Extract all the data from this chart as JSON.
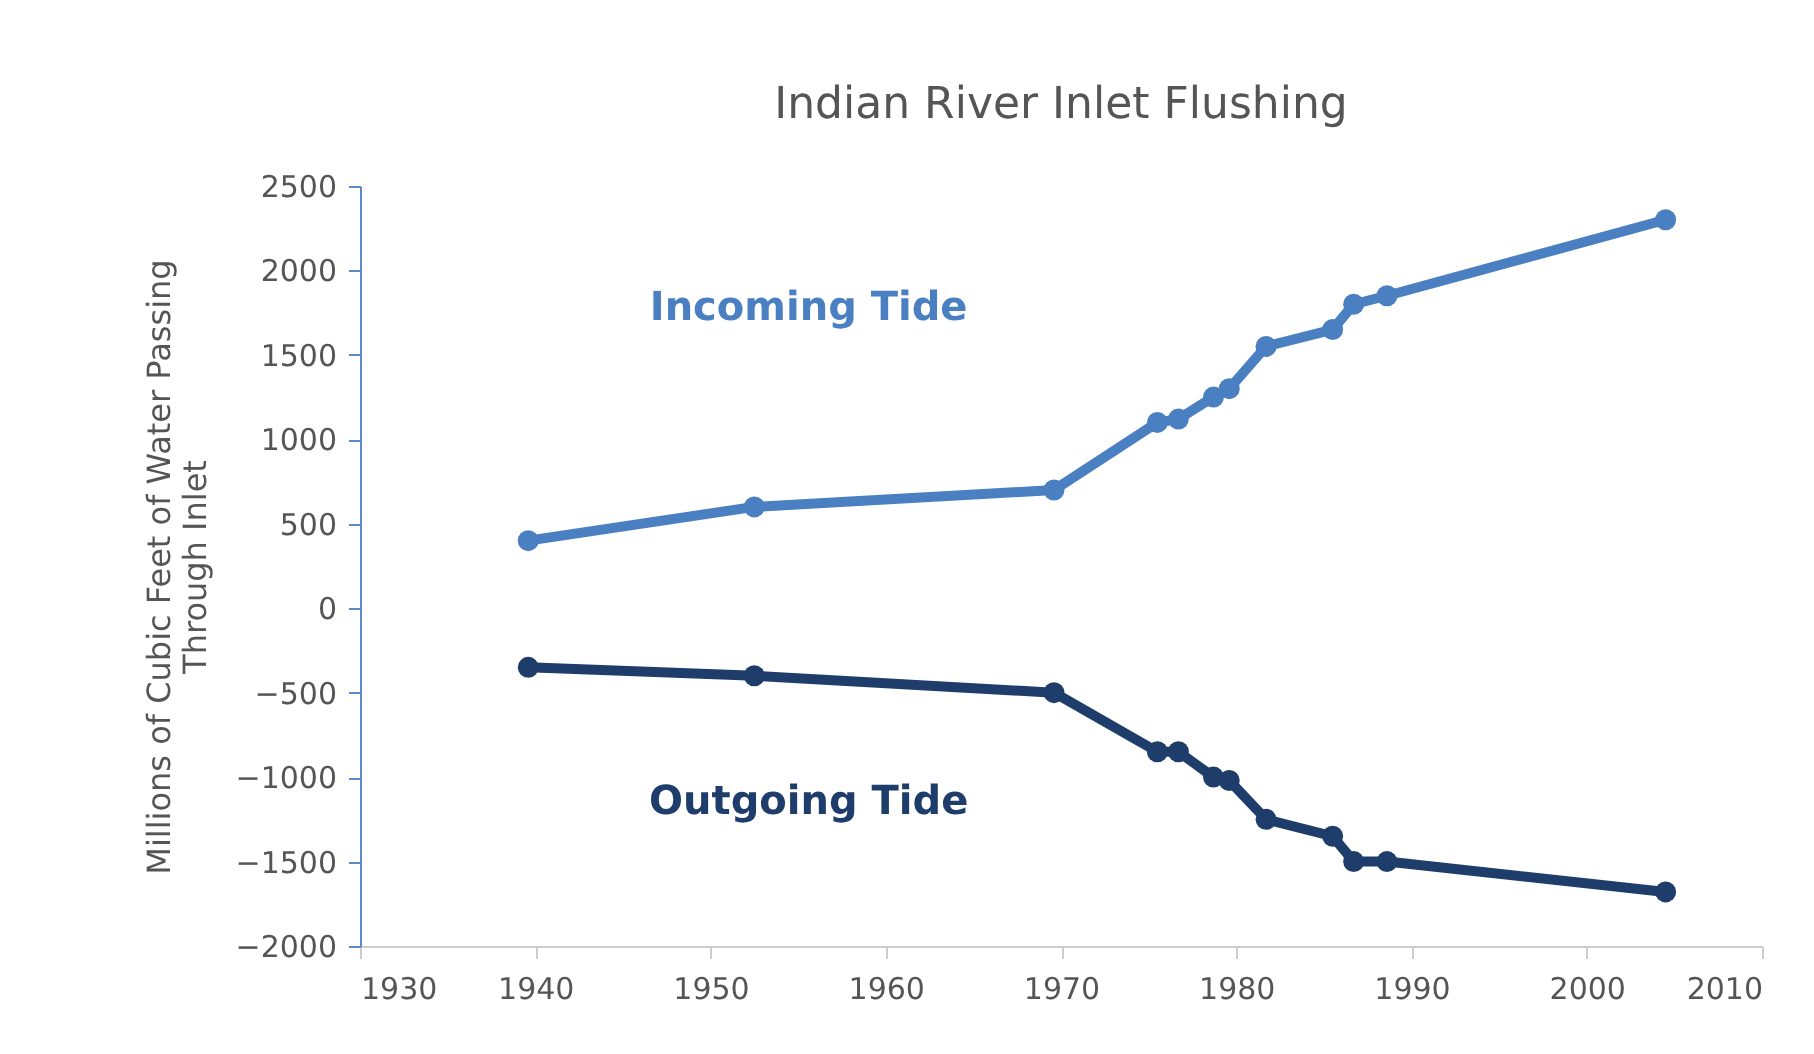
{
  "chart_data": {
    "type": "line",
    "title": "Indian River Inlet Flushing",
    "ylabel": "Millions of Cubic Feet of Water Passing Through Inlet",
    "x": [
      1939.6,
      1952.5,
      1969.6,
      1975.5,
      1976.7,
      1978.7,
      1979.6,
      1981.7,
      1985.5,
      1986.7,
      1988.6,
      2004.5
    ],
    "series": [
      {
        "name": "Incoming Tide",
        "color": "#4a7fc1",
        "values": [
          400,
          600,
          700,
          1100,
          1120,
          1250,
          1300,
          1550,
          1650,
          1800,
          1850,
          2300
        ]
      },
      {
        "name": "Outgoing Tide",
        "color": "#1f3d6b",
        "values": [
          -350,
          -400,
          -500,
          -850,
          -850,
          -1000,
          -1020,
          -1250,
          -1350,
          -1500,
          -1500,
          -1680
        ]
      }
    ],
    "xlim": [
      1930,
      2010
    ],
    "xticks": [
      1930,
      1940,
      1950,
      1960,
      1970,
      1980,
      1990,
      2000,
      2010
    ],
    "ylim": [
      -2000,
      2500
    ],
    "yticks": [
      -2000,
      -1500,
      -1000,
      -500,
      0,
      500,
      1000,
      1500,
      2000,
      2500
    ],
    "grid": false,
    "legend": false,
    "marker": "circle",
    "line_style": "solid"
  }
}
